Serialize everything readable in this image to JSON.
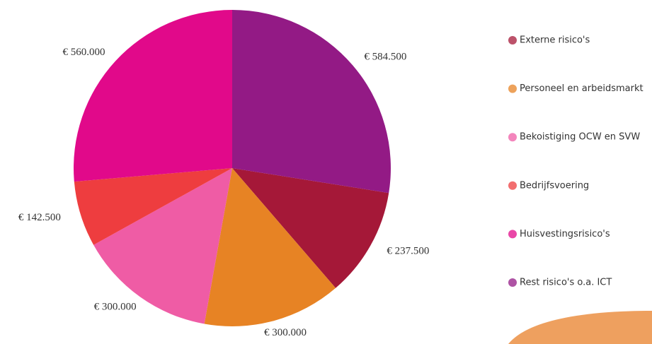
{
  "chart_data": {
    "type": "pie",
    "categories": [
      "Externe risico's",
      "Personeel en arbeidsmarkt",
      "Bekoistiging OCW en SVW",
      "Bedrijfsvoering",
      "Huisvestingsrisico's",
      "Rest risico's o.a. ICT"
    ],
    "values": [
      237500,
      300000,
      300000,
      142500,
      560000,
      584500
    ],
    "value_labels": [
      "€ 237.500",
      "€ 300.000",
      "€ 300.000",
      "€ 142.500",
      "€ 560.000",
      "€ 584.500"
    ],
    "colors": [
      "#a51838",
      "#e78324",
      "#ef5ca5",
      "#ee3d3f",
      "#e1098a",
      "#931a85"
    ],
    "legend": "right"
  }
}
